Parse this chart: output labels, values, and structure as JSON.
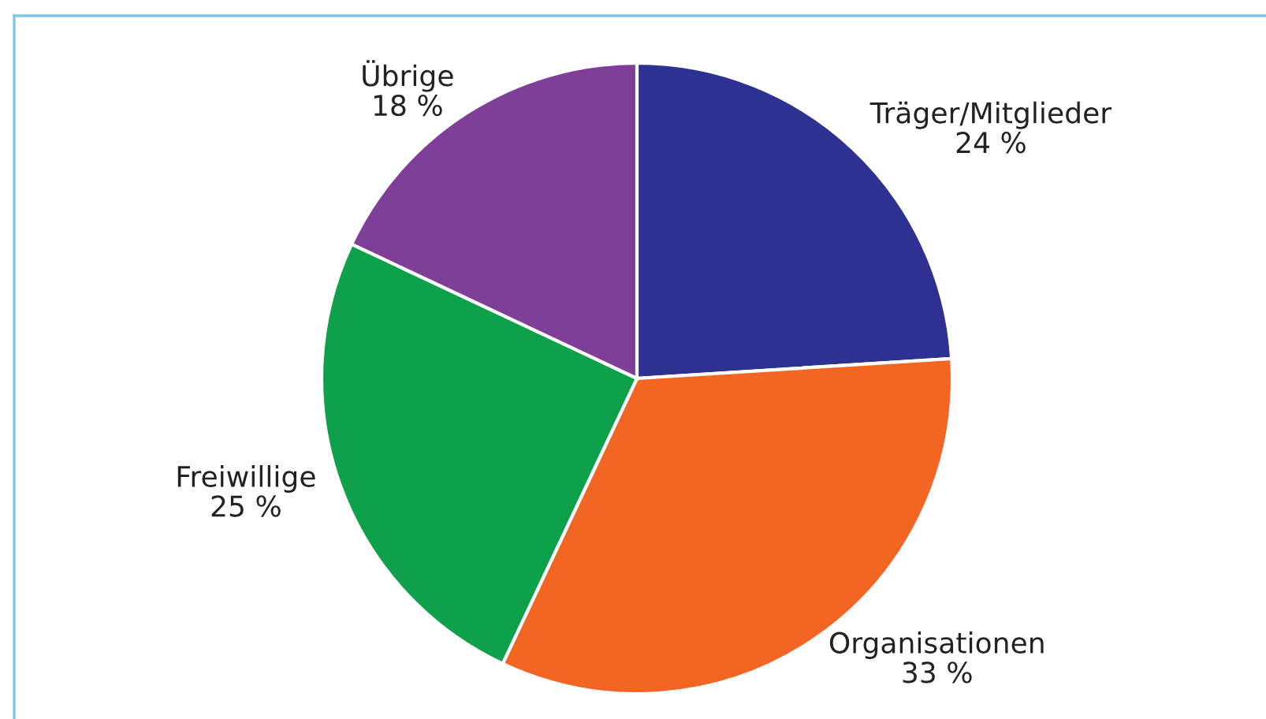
{
  "chart_data": {
    "type": "pie",
    "categories": [
      "Träger/Mitglieder",
      "Organisationen",
      "Freiwillige",
      "Übrige"
    ],
    "values": [
      24,
      33,
      25,
      18
    ],
    "value_labels": [
      "24 %",
      "33 %",
      "25 %",
      "18 %"
    ],
    "colors": [
      "#2e3192",
      "#f26522",
      "#0ea04a",
      "#7f3f98"
    ],
    "legend": false
  }
}
